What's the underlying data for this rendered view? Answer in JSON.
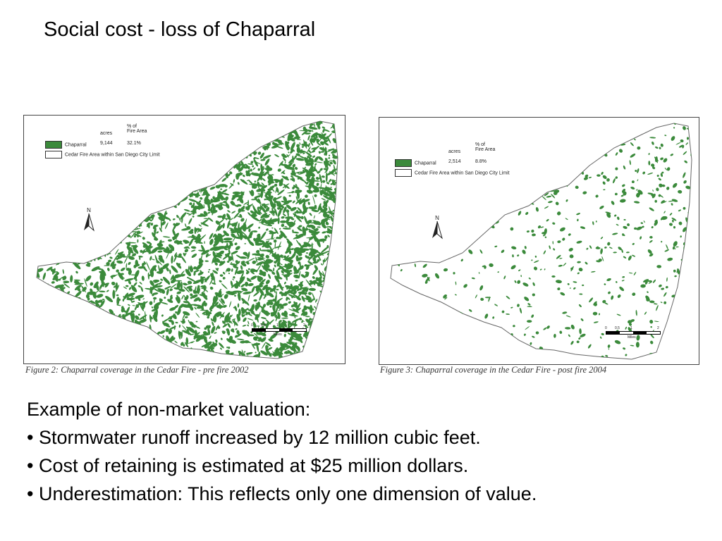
{
  "title": "Social cost - loss of Chaparral",
  "colors": {
    "chaparral": "#3b8a3b",
    "boundary": "#666666"
  },
  "figures": [
    {
      "legend": {
        "col_acres": "acres",
        "col_pct": "% of\nFire Area",
        "chaparral_label": "Chaparral",
        "chaparral_acres": "9,144",
        "chaparral_pct": "32.1%",
        "area_label": "Cedar Fire Area within San Diego City Limit"
      },
      "north": "N",
      "scale": {
        "ticks": [
          "0",
          "0.5",
          "1",
          "2"
        ],
        "unit": "Miles"
      },
      "caption": "Figure 2: Chaparral coverage in the Cedar Fire - pre fire 2002"
    },
    {
      "legend": {
        "col_acres": "acres",
        "col_pct": "% of\nFire Area",
        "chaparral_label": "Chaparral",
        "chaparral_acres": "2,514",
        "chaparral_pct": "8.8%",
        "area_label": "Cedar Fire Area within San Diego City Limit"
      },
      "north": "N",
      "scale": {
        "ticks": [
          "0",
          "0.5",
          "1",
          "2"
        ],
        "unit": "Miles"
      },
      "caption": "Figure 3: Chaparral coverage in the Cedar Fire - post fire 2004"
    }
  ],
  "body": {
    "heading": "Example of non-market valuation:",
    "bullets": [
      "• Stormwater runoff increased by 12 million cubic feet.",
      "• Cost of retaining is estimated at $25 million dollars.",
      "• Underestimation: This reflects only one dimension of value."
    ]
  }
}
